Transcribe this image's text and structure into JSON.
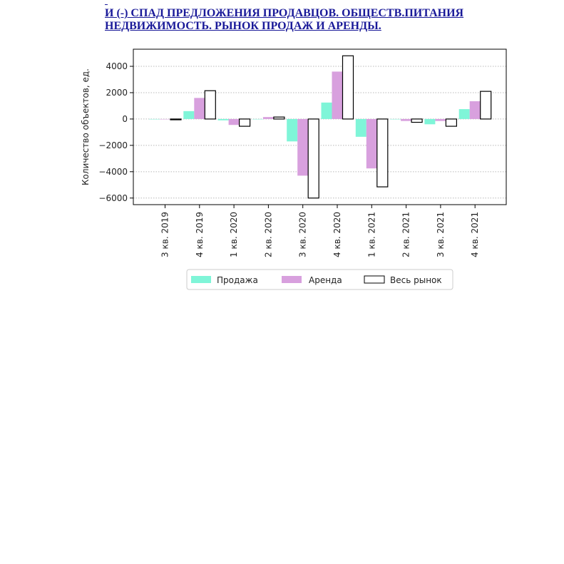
{
  "heading": {
    "line1": "И (-) СПАД ПРЕДЛОЖЕНИЯ ПРОДАВЦОВ. ОБЩЕСТВ.ПИТАНИЯ",
    "line2": "НЕДВИЖИМОСТЬ. РЫНОК ПРОДАЖ И АРЕНДЫ."
  },
  "colors": {
    "heading": "#1a1a99",
    "sale": "#7ff5d8",
    "rent": "#d8a0de",
    "market_fill": "#ffffff",
    "market_edge": "#000000"
  },
  "chart_data": {
    "type": "bar",
    "title": "",
    "xlabel": "",
    "ylabel": "Количество объектов, ед.",
    "ylim": [
      -6500,
      5300
    ],
    "yticks": [
      4000,
      2000,
      0,
      -2000,
      -4000,
      -6000
    ],
    "ytick_labels": [
      "4000",
      "2000",
      "0",
      "−2000",
      "−4000",
      "−6000"
    ],
    "grid": "horizontal dotted",
    "legend_position": "bottom-center",
    "categories": [
      "3 кв. 2019",
      "4 кв. 2019",
      "1 кв. 2020",
      "2 кв. 2020",
      "3 кв. 2020",
      "4 кв. 2020",
      "1 кв. 2021",
      "2 кв. 2021",
      "3 кв. 2021",
      "4 кв. 2021"
    ],
    "series": [
      {
        "name": "Продажа",
        "values": [
          0,
          600,
          -100,
          0,
          -1700,
          1250,
          -1350,
          0,
          -400,
          750
        ]
      },
      {
        "name": "Аренда",
        "values": [
          0,
          1600,
          -450,
          150,
          -4300,
          3600,
          -3750,
          -150,
          -150,
          1350
        ]
      },
      {
        "name": "Весь рынок",
        "values": [
          -60,
          2150,
          -550,
          150,
          -6000,
          4800,
          -5150,
          -250,
          -550,
          2100
        ]
      }
    ]
  }
}
